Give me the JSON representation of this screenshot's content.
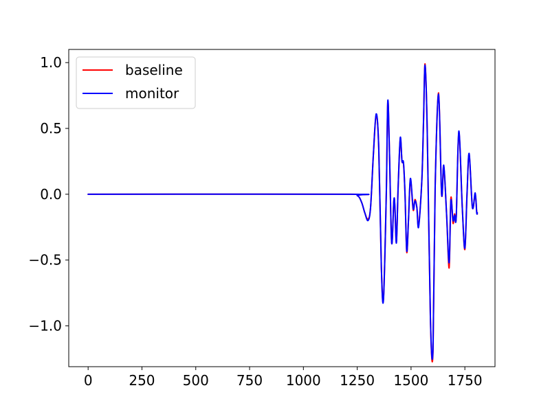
{
  "chart_data": {
    "type": "line",
    "title": "",
    "xlabel": "",
    "ylabel": "",
    "xlim": [
      -90,
      1890
    ],
    "ylim": [
      -1.31,
      1.1
    ],
    "xticks": [
      0,
      250,
      500,
      750,
      1000,
      1250,
      1500,
      1750
    ],
    "xtick_labels": [
      "0",
      "250",
      "500",
      "750",
      "1000",
      "1250",
      "1500",
      "1750"
    ],
    "yticks": [
      1.0,
      0.5,
      0.0,
      -0.5,
      -1.0
    ],
    "ytick_labels": [
      "1.0",
      "0.5",
      "0.0",
      "−0.5",
      "−1.0"
    ],
    "grid": false,
    "legend_position": "top-left",
    "series": [
      {
        "name": "baseline",
        "color": "#ff0000",
        "x": [
          0,
          1200,
          1250,
          1270,
          1285,
          1300,
          1312,
          1325,
          1338,
          1350,
          1362,
          1372,
          1385,
          1392,
          1400,
          1410,
          1420,
          1425,
          1432,
          1440,
          1450,
          1458,
          1465,
          1472,
          1480,
          1488,
          1497,
          1510,
          1518,
          1527,
          1535,
          1550,
          1558,
          1565,
          1575,
          1590,
          1602,
          1612,
          1628,
          1642,
          1652,
          1665,
          1677,
          1685,
          1695,
          1702,
          1710,
          1722,
          1738,
          1750,
          1760,
          1770,
          1785,
          1798,
          1805,
          1808
        ],
        "y": [
          0.0,
          0.0,
          -0.01,
          -0.06,
          -0.14,
          -0.19,
          -0.1,
          0.3,
          0.6,
          0.35,
          -0.55,
          -0.79,
          0.0,
          0.7,
          0.3,
          -0.37,
          -0.05,
          -0.1,
          -0.36,
          0.05,
          0.42,
          0.25,
          0.23,
          0.0,
          -0.44,
          -0.2,
          0.11,
          -0.12,
          -0.04,
          -0.1,
          -0.24,
          0.1,
          0.55,
          0.99,
          0.5,
          -0.95,
          -1.2,
          0.05,
          0.77,
          0.0,
          0.21,
          -0.15,
          -0.56,
          -0.03,
          -0.22,
          -0.15,
          -0.17,
          0.47,
          -0.1,
          -0.42,
          0.0,
          0.3,
          -0.1,
          0.0,
          -0.13,
          -0.15
        ]
      },
      {
        "name": "monitor",
        "color": "#0000ff",
        "x": [
          0,
          1200,
          1250,
          1270,
          1285,
          1300,
          1312,
          1325,
          1338,
          1350,
          1362,
          1372,
          1385,
          1392,
          1400,
          1410,
          1420,
          1425,
          1432,
          1440,
          1450,
          1458,
          1465,
          1472,
          1480,
          1488,
          1497,
          1510,
          1518,
          1527,
          1535,
          1550,
          1558,
          1565,
          1575,
          1590,
          1602,
          1612,
          1628,
          1642,
          1652,
          1665,
          1677,
          1685,
          1695,
          1702,
          1710,
          1722,
          1738,
          1750,
          1760,
          1770,
          1785,
          1798,
          1805,
          1808
        ],
        "y": [
          0.0,
          0.0,
          -0.01,
          -0.06,
          -0.14,
          -0.2,
          -0.1,
          0.3,
          0.61,
          0.35,
          -0.55,
          -0.8,
          0.0,
          0.71,
          0.3,
          -0.37,
          -0.05,
          -0.09,
          -0.37,
          0.05,
          0.43,
          0.25,
          0.24,
          0.0,
          -0.43,
          -0.2,
          0.12,
          -0.11,
          -0.05,
          -0.1,
          -0.25,
          0.1,
          0.56,
          0.98,
          0.5,
          -0.94,
          -1.18,
          0.05,
          0.76,
          0.0,
          0.22,
          -0.15,
          -0.52,
          -0.05,
          -0.2,
          -0.16,
          -0.17,
          0.48,
          -0.1,
          -0.41,
          0.0,
          0.31,
          -0.1,
          0.01,
          -0.14,
          -0.14
        ]
      }
    ]
  }
}
